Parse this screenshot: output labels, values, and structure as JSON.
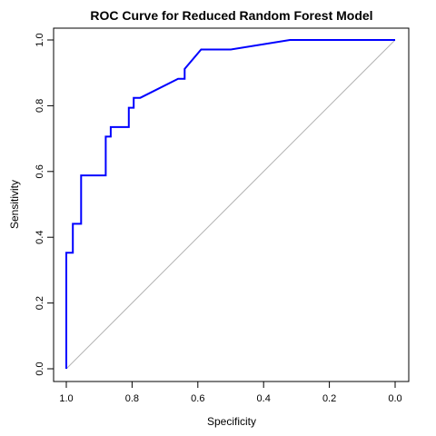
{
  "chart_data": {
    "type": "line",
    "title": "ROC Curve for Reduced Random Forest Model",
    "xlabel": "Specificity",
    "ylabel": "Sensitivity",
    "xlim": [
      1.0,
      0.0
    ],
    "ylim": [
      0.0,
      1.0
    ],
    "x_reversed": true,
    "grid": false,
    "legend": "none",
    "x_ticks": [
      "1.0",
      "0.8",
      "0.6",
      "0.4",
      "0.2",
      "0.0"
    ],
    "y_ticks": [
      "0.0",
      "0.2",
      "0.4",
      "0.6",
      "0.8",
      "1.0"
    ],
    "reference_line": {
      "x": [
        1.0,
        0.0
      ],
      "y": [
        0.0,
        1.0
      ],
      "color": "#b3b3b3"
    },
    "series": [
      {
        "color": "#0000ff",
        "x": [
          1.0,
          1.0,
          0.98,
          0.98,
          0.955,
          0.955,
          0.88,
          0.88,
          0.865,
          0.865,
          0.81,
          0.81,
          0.795,
          0.795,
          0.775,
          0.66,
          0.64,
          0.64,
          0.59,
          0.5,
          0.32,
          0.0
        ],
        "y": [
          0.0,
          0.353,
          0.353,
          0.441,
          0.441,
          0.588,
          0.588,
          0.706,
          0.706,
          0.735,
          0.735,
          0.794,
          0.794,
          0.824,
          0.824,
          0.882,
          0.882,
          0.912,
          0.971,
          0.971,
          1.0,
          1.0
        ]
      }
    ]
  }
}
